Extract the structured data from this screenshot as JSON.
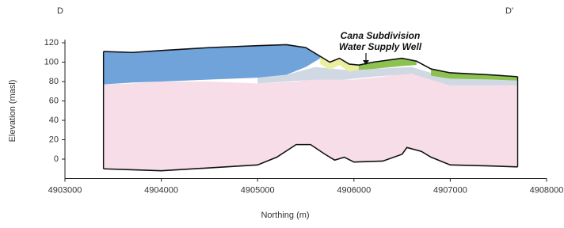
{
  "chart_data": {
    "type": "cross-section",
    "left_label": "D",
    "right_label": "D'",
    "annotation": [
      "Cana Subdivision",
      "Water Supply Well"
    ],
    "x_label": "Northing (m)",
    "y_label": "Elevation (masl)",
    "xlim": [
      4903000,
      4908000
    ],
    "xticks": [
      4903000,
      4904000,
      4905000,
      4906000,
      4907000,
      4908000
    ],
    "ylim": [
      -20,
      120
    ],
    "yticks": [
      0,
      20,
      40,
      60,
      80,
      100,
      120
    ],
    "layers": [
      {
        "color": "#f6dde8",
        "x": [
          4903400,
          4903700,
          4904000,
          4904500,
          4905000,
          4905200,
          4905400,
          4905550,
          4905700,
          4905800,
          4905900,
          4906000,
          4906300,
          4906500,
          4906550,
          4906700,
          4906800,
          4907000,
          4907400,
          4907700
        ],
        "top": [
          77,
          78,
          80,
          80,
          78,
          79,
          80,
          82,
          82,
          82,
          82,
          82,
          85,
          88,
          88,
          87,
          84,
          76,
          76,
          76
        ],
        "base": [
          -10,
          -11,
          -12,
          -9,
          -6,
          2,
          15,
          15,
          5,
          -1,
          2,
          -3,
          -2,
          5,
          12,
          8,
          2,
          -6,
          -7,
          -8
        ]
      },
      {
        "color": "#cfd8e3",
        "x": [
          4905000,
          4905300,
          4905600,
          4905900,
          4906200,
          4906600,
          4907000,
          4907700
        ],
        "top": [
          84,
          87,
          95,
          92,
          93,
          95,
          83,
          81
        ],
        "base": [
          78,
          80,
          82,
          82,
          85,
          88,
          76,
          76
        ]
      },
      {
        "color": "#6fa3da",
        "x": [
          4903400,
          4903700,
          4904000,
          4904500,
          4905000,
          4905300,
          4905500,
          4905650
        ],
        "top": [
          111,
          110,
          112,
          115,
          117,
          118,
          115,
          106
        ],
        "base": [
          77,
          79,
          80,
          82,
          84,
          87,
          95,
          104
        ]
      },
      {
        "color": "#e9ef9f",
        "x": [
          4905650,
          4905750,
          4905850,
          4905950,
          4906050
        ],
        "top": [
          106,
          100,
          104,
          98,
          97
        ],
        "base": [
          98,
          92,
          97,
          90,
          92
        ]
      },
      {
        "color": "#8dc152",
        "x": [
          4906050,
          4906200,
          4906500,
          4906650
        ],
        "top": [
          97,
          100,
          104,
          101
        ],
        "base": [
          92,
          93,
          96,
          97
        ]
      },
      {
        "color": "#8dc152",
        "x": [
          4906800,
          4907000,
          4907400,
          4907700
        ],
        "top": [
          93,
          89,
          87,
          85
        ],
        "base": [
          86,
          83,
          82,
          81
        ]
      }
    ],
    "ground": {
      "color": "#111111",
      "x": [
        4903400,
        4903700,
        4904000,
        4904500,
        4905000,
        4905300,
        4905500,
        4905650,
        4905750,
        4905850,
        4905950,
        4906050,
        4906200,
        4906500,
        4906650,
        4906800,
        4907000,
        4907400,
        4907700
      ],
      "values": [
        111,
        110,
        112,
        115,
        117,
        118,
        115,
        106,
        100,
        104,
        98,
        97,
        100,
        104,
        101,
        93,
        89,
        87,
        85
      ]
    }
  }
}
